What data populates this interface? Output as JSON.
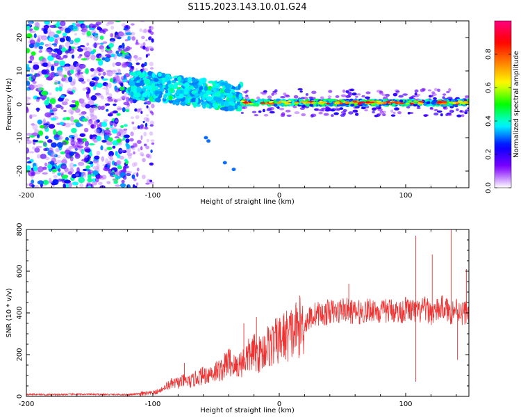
{
  "title": "S115.2023.143.10.01.G24",
  "chart_data": [
    {
      "type": "heatmap",
      "xlabel": "Height of straight line (km)",
      "ylabel": "Frequency (Hz)",
      "xlim": [
        -200,
        150
      ],
      "ylim": [
        -25,
        25
      ],
      "x_ticks": [
        -200,
        -100,
        0,
        100
      ],
      "y_ticks": [
        -20,
        -10,
        0,
        10,
        20
      ],
      "grid": false,
      "colorbar": {
        "label": "Normalized spectral amplitude",
        "range": [
          0,
          1
        ],
        "ticks": [
          "0.0",
          "0.2",
          "0.4",
          "0.6",
          "0.8"
        ],
        "tick_values": [
          0,
          0.2,
          0.4,
          0.6,
          0.8
        ],
        "colormap": [
          "#ffffff",
          "#7f00ff",
          "#0000ff",
          "#00ffff",
          "#00ff00",
          "#ffff00",
          "#ff7f00",
          "#ff0000",
          "#ff0080"
        ]
      },
      "features": [
        {
          "region": "noise",
          "x_range": [
            -200,
            -118
          ],
          "freq_range": [
            -25,
            25
          ],
          "amplitude_range": [
            0.05,
            0.5
          ]
        },
        {
          "region": "transition",
          "x_range": [
            -118,
            -100
          ],
          "freq_range": [
            -25,
            25
          ],
          "amplitude_range": [
            0.05,
            0.3
          ]
        },
        {
          "region": "ridge",
          "x_range": [
            -118,
            -30
          ],
          "freq_range": [
            -5,
            10
          ],
          "amplitude_range": [
            0.3,
            0.45
          ]
        },
        {
          "region": "tone",
          "x_range": [
            -30,
            150
          ],
          "freq_center": 0.5,
          "amplitude_range": [
            0.4,
            0.85
          ]
        }
      ]
    },
    {
      "type": "line",
      "xlabel": "Height of straight line (km)",
      "ylabel": "SNR (10 * v/v)",
      "xlim": [
        -200,
        150
      ],
      "ylim": [
        0,
        800
      ],
      "x_ticks": [
        -200,
        -100,
        0,
        100
      ],
      "y_ticks": [
        0,
        200,
        400,
        600,
        800
      ],
      "grid": false,
      "series": [
        {
          "color": "#ee3333",
          "x": [
            -200,
            -180,
            -160,
            -140,
            -120,
            -110,
            -100,
            -95,
            -90,
            -85,
            -80,
            -75,
            -70,
            -65,
            -60,
            -55,
            -50,
            -45,
            -40,
            -35,
            -30,
            -25,
            -20,
            -15,
            -10,
            -5,
            0,
            5,
            10,
            15,
            20,
            25,
            30,
            35,
            40,
            45,
            50,
            55,
            60,
            65,
            70,
            75,
            80,
            85,
            90,
            95,
            100,
            105,
            110,
            115,
            120,
            125,
            130,
            135,
            140,
            145,
            150
          ],
          "y": [
            10,
            8,
            10,
            9,
            8,
            12,
            15,
            25,
            45,
            60,
            65,
            75,
            70,
            90,
            100,
            110,
            120,
            130,
            170,
            140,
            160,
            190,
            210,
            200,
            240,
            250,
            270,
            290,
            300,
            330,
            350,
            380,
            400,
            390,
            410,
            400,
            420,
            410,
            400,
            405,
            410,
            420,
            400,
            410,
            415,
            400,
            420,
            410,
            400,
            420,
            400,
            410,
            430,
            400,
            420,
            400,
            410
          ]
        }
      ],
      "spikes": [
        {
          "x": -75,
          "y": 160
        },
        {
          "x": -28,
          "y": 350
        },
        {
          "x": -18,
          "y": 380
        },
        {
          "x": 55,
          "y": 540
        },
        {
          "x": 108,
          "y": 770
        },
        {
          "x": 108,
          "y": 70
        },
        {
          "x": 121,
          "y": 680
        },
        {
          "x": 136,
          "y": 800
        },
        {
          "x": 148,
          "y": 610
        },
        {
          "x": 141,
          "y": 175
        }
      ]
    }
  ]
}
